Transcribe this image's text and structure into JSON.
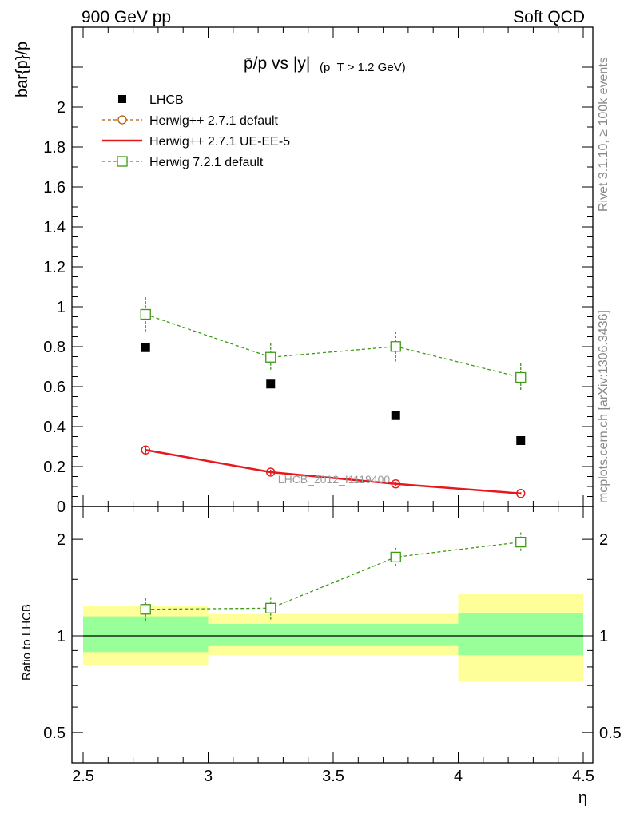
{
  "header": {
    "left": "900 GeV pp",
    "right": "Soft QCD"
  },
  "side": {
    "top": "Rivet 3.1.10, ≥ 100k events",
    "bottom": "mcplots.cern.ch [arXiv:1306.3436]"
  },
  "chart_data": {
    "type": "scatter",
    "title": "p̄/p vs |y|",
    "title_cut": "(p_T > 1.2 GeV)",
    "xlabel": "η",
    "ylabel": "bar{p}/p",
    "ratio_ylabel": "Ratio to LHCB",
    "watermark": "LHCB_2012_I1119400",
    "xlim": [
      2.5,
      4.5
    ],
    "ylim": [
      0,
      2.2
    ],
    "ratio_ylim": [
      0.4,
      2.4
    ],
    "ratio_scale": "log",
    "x_ticks": [
      "2.5",
      "3",
      "3.5",
      "4",
      "4.5"
    ],
    "y_ticks": [
      "0",
      "0.2",
      "0.4",
      "0.6",
      "0.8",
      "1",
      "1.2",
      "1.4",
      "1.6",
      "1.8",
      "2"
    ],
    "ratio_ticks": [
      "0.5",
      "1",
      "2"
    ],
    "bins": [
      [
        2.5,
        3.0
      ],
      [
        3.0,
        3.5
      ],
      [
        3.5,
        4.0
      ],
      [
        4.0,
        4.5
      ]
    ],
    "x": [
      2.75,
      3.25,
      3.75,
      4.25
    ],
    "series": [
      {
        "name": "LHCB",
        "style": "data",
        "color": "#000000",
        "values": [
          0.795,
          0.613,
          0.455,
          0.33
        ]
      },
      {
        "name": "Herwig++ 2.7.1 default",
        "style": "circle-dashed",
        "color": "#b35a00",
        "values": [
          0.283,
          0.172,
          0.113,
          0.065
        ],
        "errors": [
          0.02,
          0.012,
          0.01,
          0.006
        ]
      },
      {
        "name": "Herwig++ 2.7.1 UE-EE-5",
        "style": "solid",
        "color": "#e8161d",
        "values": [
          0.283,
          0.172,
          0.113,
          0.065
        ],
        "errors": [
          0.02,
          0.012,
          0.01,
          0.006
        ]
      },
      {
        "name": "Herwig 7.2.1 default",
        "style": "square-dashed",
        "color": "#3c9a13",
        "values": [
          0.962,
          0.747,
          0.801,
          0.646
        ],
        "errors": [
          0.085,
          0.07,
          0.075,
          0.07
        ]
      }
    ],
    "ratio": {
      "series_index": 3,
      "values": [
        1.21,
        1.22,
        1.76,
        1.96
      ],
      "errors": [
        0.1,
        0.1,
        0.12,
        0.14
      ],
      "band_stat": [
        [
          0.89,
          1.15
        ],
        [
          0.93,
          1.09
        ],
        [
          0.93,
          1.09
        ],
        [
          0.87,
          1.18
        ]
      ],
      "band_total": [
        [
          0.81,
          1.24
        ],
        [
          0.87,
          1.17
        ],
        [
          0.87,
          1.17
        ],
        [
          0.72,
          1.35
        ]
      ],
      "band_stat_color": "#99ff99",
      "band_total_color": "#ffff99"
    }
  }
}
